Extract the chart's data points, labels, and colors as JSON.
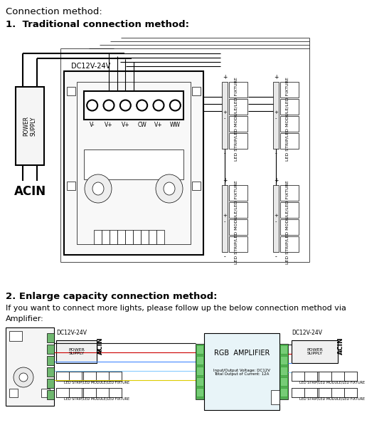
{
  "title_text": "Connection method:",
  "section1_title": "1.  Traditional connection method:",
  "section2_title": "2. Enlarge capacity connection method:",
  "section2_line1": "If you want to connect more lights, please follow up the below connection method via",
  "section2_line2": "Amplifier:",
  "dc_label": "DC12V-24V",
  "acin_label": "ACIN",
  "power_supply_label": "POWER\nSUPPLY",
  "terminal_labels": [
    "V-",
    "V+",
    "V+",
    "CW",
    "V+",
    "WW"
  ],
  "led_strip_label": "LED STRIP/LED MODULE/LED FIXTURE",
  "rgb_amplifier_label": "RGB  AMPLIFIER",
  "rgb_sub_label": "Input/Output Voltage: DC12V\nTotal Output of Current: 12A",
  "bg_color": "#ffffff",
  "line_color": "#000000"
}
